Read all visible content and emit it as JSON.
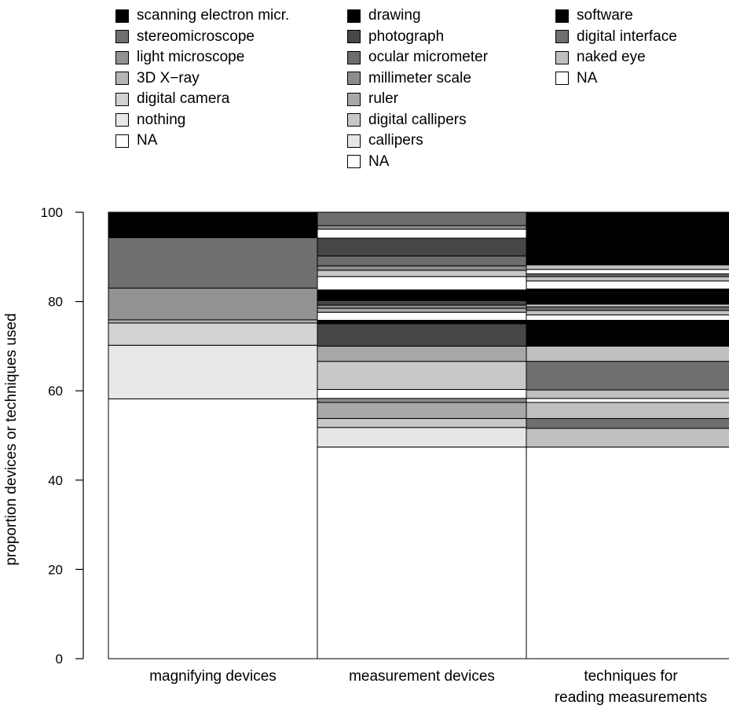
{
  "chart_data": {
    "type": "bar",
    "stacked": true,
    "ylabel": "proportion devices or techniques used",
    "ylim": [
      0,
      100
    ],
    "yticks": [
      "0",
      "20",
      "40",
      "60",
      "80",
      "100"
    ],
    "categories": [
      "magnifying devices",
      "measurement devices",
      "techniques for|reading measurements"
    ],
    "legends": [
      {
        "items": [
          {
            "label": "scanning electron micr.",
            "color": "#000000"
          },
          {
            "label": "stereomicroscope",
            "color": "#707070"
          },
          {
            "label": "light microscope",
            "color": "#939393"
          },
          {
            "label": "3D X−ray",
            "color": "#b5b5b5"
          },
          {
            "label": "digital camera",
            "color": "#d2d2d2"
          },
          {
            "label": "nothing",
            "color": "#e8e8e8"
          },
          {
            "label": "NA",
            "color": "#ffffff"
          }
        ]
      },
      {
        "items": [
          {
            "label": "drawing",
            "color": "#000000"
          },
          {
            "label": "photograph",
            "color": "#474747"
          },
          {
            "label": "ocular micrometer",
            "color": "#6d6d6d"
          },
          {
            "label": "millimeter scale",
            "color": "#8c8c8c"
          },
          {
            "label": "ruler",
            "color": "#a8a8a8"
          },
          {
            "label": "digital callipers",
            "color": "#c8c8c8"
          },
          {
            "label": "callipers",
            "color": "#e6e6e6"
          },
          {
            "label": "NA",
            "color": "#ffffff"
          }
        ]
      },
      {
        "items": [
          {
            "label": "software",
            "color": "#000000"
          },
          {
            "label": "digital interface",
            "color": "#6f6f6f"
          },
          {
            "label": "naked eye",
            "color": "#c0c0c0"
          },
          {
            "label": "NA",
            "color": "#ffffff"
          }
        ]
      }
    ],
    "bars": [
      {
        "category": "magnifying devices",
        "segments": [
          {
            "from": 0,
            "to": 58.2,
            "color": "#ffffff"
          },
          {
            "from": 58.2,
            "to": 70.2,
            "color": "#e8e8e8"
          },
          {
            "from": 70.2,
            "to": 75.2,
            "color": "#d2d2d2"
          },
          {
            "from": 75.2,
            "to": 75.9,
            "color": "#b5b5b5"
          },
          {
            "from": 75.9,
            "to": 83.0,
            "color": "#939393"
          },
          {
            "from": 83.0,
            "to": 94.3,
            "color": "#707070"
          },
          {
            "from": 94.3,
            "to": 100,
            "color": "#000000"
          }
        ]
      },
      {
        "category": "measurement devices",
        "segments": [
          {
            "from": 0,
            "to": 47.4,
            "color": "#ffffff"
          },
          {
            "from": 47.4,
            "to": 51.8,
            "color": "#e6e6e6"
          },
          {
            "from": 51.8,
            "to": 53.8,
            "color": "#c8c8c8"
          },
          {
            "from": 53.8,
            "to": 57.4,
            "color": "#a8a8a8"
          },
          {
            "from": 57.4,
            "to": 58.3,
            "color": "#8c8c8c"
          },
          {
            "from": 58.3,
            "to": 60.3,
            "color": "#ffffff"
          },
          {
            "from": 60.3,
            "to": 66.6,
            "color": "#c8c8c8"
          },
          {
            "from": 66.6,
            "to": 70.0,
            "color": "#a8a8a8"
          },
          {
            "from": 70.0,
            "to": 75.0,
            "color": "#474747"
          },
          {
            "from": 75.0,
            "to": 75.8,
            "color": "#000000"
          },
          {
            "from": 75.8,
            "to": 77.6,
            "color": "#ffffff"
          },
          {
            "from": 77.6,
            "to": 78.5,
            "color": "#a8a8a8"
          },
          {
            "from": 78.5,
            "to": 79.2,
            "color": "#8c8c8c"
          },
          {
            "from": 79.2,
            "to": 80.2,
            "color": "#474747"
          },
          {
            "from": 80.2,
            "to": 82.6,
            "color": "#000000"
          },
          {
            "from": 82.6,
            "to": 85.6,
            "color": "#ffffff"
          },
          {
            "from": 85.6,
            "to": 87.0,
            "color": "#c8c8c8"
          },
          {
            "from": 87.0,
            "to": 88.0,
            "color": "#8c8c8c"
          },
          {
            "from": 88.0,
            "to": 90.2,
            "color": "#6d6d6d"
          },
          {
            "from": 90.2,
            "to": 94.2,
            "color": "#474747"
          },
          {
            "from": 94.2,
            "to": 96.2,
            "color": "#ffffff"
          },
          {
            "from": 96.2,
            "to": 97.0,
            "color": "#8c8c8c"
          },
          {
            "from": 97.0,
            "to": 100,
            "color": "#6d6d6d"
          }
        ]
      },
      {
        "category": "techniques for reading measurements",
        "segments": [
          {
            "from": 0,
            "to": 47.4,
            "color": "#ffffff"
          },
          {
            "from": 47.4,
            "to": 51.6,
            "color": "#c0c0c0"
          },
          {
            "from": 51.6,
            "to": 53.8,
            "color": "#6f6f6f"
          },
          {
            "from": 53.8,
            "to": 57.4,
            "color": "#c0c0c0"
          },
          {
            "from": 57.4,
            "to": 58.3,
            "color": "#ffffff"
          },
          {
            "from": 58.3,
            "to": 60.2,
            "color": "#c0c0c0"
          },
          {
            "from": 60.2,
            "to": 66.6,
            "color": "#6f6f6f"
          },
          {
            "from": 66.6,
            "to": 70.0,
            "color": "#c0c0c0"
          },
          {
            "from": 70.0,
            "to": 75.8,
            "color": "#000000"
          },
          {
            "from": 75.8,
            "to": 77.0,
            "color": "#ffffff"
          },
          {
            "from": 77.0,
            "to": 78.0,
            "color": "#c0c0c0"
          },
          {
            "from": 78.0,
            "to": 78.8,
            "color": "#6f6f6f"
          },
          {
            "from": 78.8,
            "to": 79.4,
            "color": "#c0c0c0"
          },
          {
            "from": 79.4,
            "to": 82.8,
            "color": "#000000"
          },
          {
            "from": 82.8,
            "to": 84.6,
            "color": "#ffffff"
          },
          {
            "from": 84.6,
            "to": 85.6,
            "color": "#c0c0c0"
          },
          {
            "from": 85.6,
            "to": 86.2,
            "color": "#6f6f6f"
          },
          {
            "from": 86.2,
            "to": 87.2,
            "color": "#ffffff"
          },
          {
            "from": 87.2,
            "to": 88.2,
            "color": "#c0c0c0"
          },
          {
            "from": 88.2,
            "to": 100,
            "color": "#000000"
          }
        ]
      }
    ]
  }
}
